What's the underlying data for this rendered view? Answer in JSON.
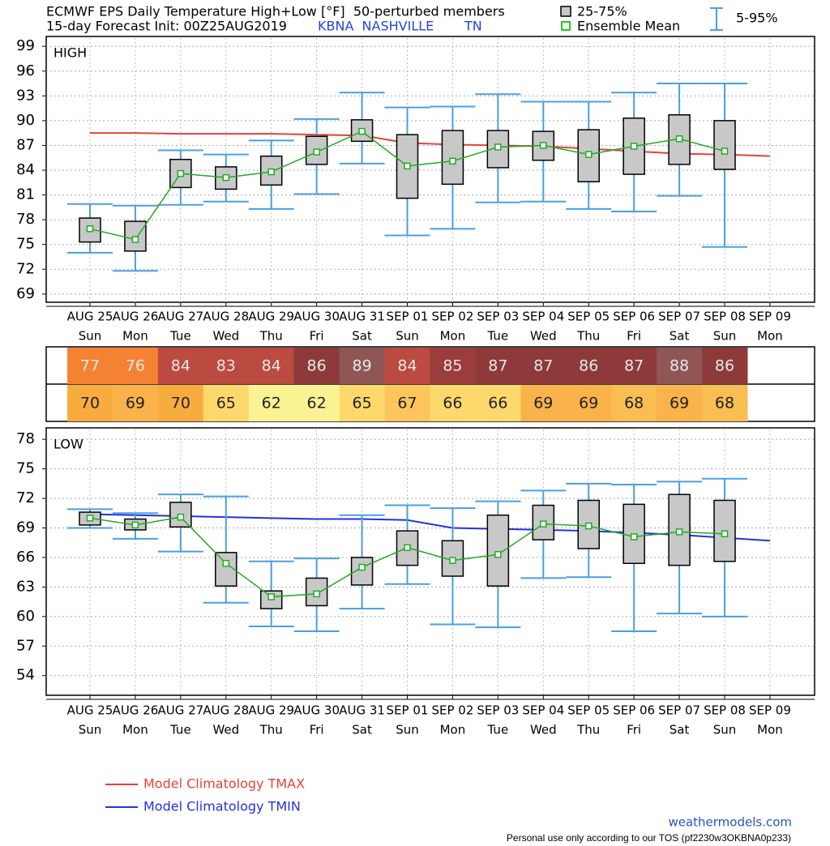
{
  "header": {
    "title": "ECMWF EPS Daily Temperature High+Low [°F]  50-perturbed members",
    "subtitle": "15-day Forecast Init: 00Z25AUG2019",
    "station": "KBNA  NASHVILLE",
    "state": "TN",
    "legend_box": "25-75%",
    "legend_mean": "Ensemble Mean",
    "legend_whisker": "5-95%"
  },
  "chart_data": [
    {
      "type": "box",
      "label": "HIGH",
      "categories": [
        "AUG 25",
        "AUG 26",
        "AUG 27",
        "AUG 28",
        "AUG 29",
        "AUG 30",
        "AUG 31",
        "SEP 01",
        "SEP 02",
        "SEP 03",
        "SEP 04",
        "SEP 05",
        "SEP 06",
        "SEP 07",
        "SEP 08",
        "SEP 09"
      ],
      "weekdays": [
        "Sun",
        "Mon",
        "Tue",
        "Wed",
        "Thu",
        "Fri",
        "Sat",
        "Sun",
        "Mon",
        "Tue",
        "Wed",
        "Thu",
        "Fri",
        "Sat",
        "Sun",
        "Mon"
      ],
      "ylim": [
        68,
        100
      ],
      "yticks": [
        69,
        72,
        75,
        78,
        81,
        84,
        87,
        90,
        93,
        96,
        99
      ],
      "grid": true,
      "box_color": "#c8c8c8",
      "whisker_color": "#4a9fe0",
      "mean_color": "#22aa22",
      "p5": [
        74.0,
        71.8,
        79.8,
        80.2,
        79.3,
        81.1,
        84.8,
        76.1,
        76.9,
        80.1,
        80.2,
        79.3,
        79.0,
        80.9,
        74.7,
        null
      ],
      "p25": [
        75.3,
        74.2,
        81.9,
        81.7,
        82.2,
        84.7,
        87.5,
        80.6,
        82.3,
        84.3,
        85.2,
        82.6,
        83.5,
        84.7,
        84.1,
        null
      ],
      "mean": [
        76.9,
        75.6,
        83.6,
        83.1,
        83.8,
        86.2,
        88.7,
        84.5,
        85.1,
        86.8,
        87.0,
        85.9,
        86.9,
        87.8,
        86.3,
        null
      ],
      "p75": [
        78.2,
        77.8,
        85.3,
        84.4,
        85.7,
        88.1,
        90.1,
        88.3,
        88.8,
        88.8,
        88.7,
        88.9,
        90.3,
        90.7,
        90.0,
        null
      ],
      "p95": [
        79.9,
        79.7,
        86.4,
        85.9,
        87.6,
        90.2,
        93.4,
        91.6,
        91.7,
        93.2,
        92.3,
        92.3,
        93.4,
        94.5,
        94.5,
        null
      ],
      "climatology": {
        "name": "Model Climatology TMAX",
        "color": "#e8403a",
        "values": [
          88.5,
          88.5,
          88.4,
          88.4,
          88.4,
          88.3,
          88.2,
          87.3,
          87.1,
          87.0,
          86.9,
          86.6,
          86.3,
          86.0,
          85.9,
          85.7
        ]
      }
    },
    {
      "type": "box",
      "label": "LOW",
      "categories": [
        "AUG 25",
        "AUG 26",
        "AUG 27",
        "AUG 28",
        "AUG 29",
        "AUG 30",
        "AUG 31",
        "SEP 01",
        "SEP 02",
        "SEP 03",
        "SEP 04",
        "SEP 05",
        "SEP 06",
        "SEP 07",
        "SEP 08",
        "SEP 09"
      ],
      "weekdays": [
        "Sun",
        "Mon",
        "Tue",
        "Wed",
        "Thu",
        "Fri",
        "Sat",
        "Sun",
        "Mon",
        "Tue",
        "Wed",
        "Thu",
        "Fri",
        "Sat",
        "Sun",
        "Mon"
      ],
      "ylim": [
        52,
        79
      ],
      "yticks": [
        54,
        57,
        60,
        63,
        66,
        69,
        72,
        75,
        78
      ],
      "grid": true,
      "box_color": "#c8c8c8",
      "whisker_color": "#4a9fe0",
      "mean_color": "#22aa22",
      "p5": [
        69.0,
        67.9,
        66.6,
        61.4,
        59.0,
        58.5,
        60.8,
        63.3,
        59.2,
        58.9,
        63.9,
        64.0,
        58.5,
        60.3,
        60.0,
        null
      ],
      "p25": [
        69.3,
        68.8,
        69.1,
        63.1,
        60.8,
        61.1,
        63.2,
        65.2,
        64.1,
        63.1,
        67.8,
        66.9,
        65.4,
        65.2,
        65.6,
        null
      ],
      "mean": [
        70.0,
        69.3,
        70.1,
        65.4,
        62.0,
        62.3,
        65.0,
        67.0,
        65.7,
        66.3,
        69.4,
        69.2,
        68.1,
        68.6,
        68.4,
        null
      ],
      "p75": [
        70.6,
        69.9,
        71.6,
        66.5,
        62.6,
        63.9,
        66.0,
        68.7,
        67.7,
        70.3,
        71.3,
        71.8,
        71.4,
        72.4,
        71.8,
        null
      ],
      "p95": [
        70.9,
        70.5,
        72.4,
        72.2,
        65.6,
        65.9,
        70.3,
        71.3,
        71.0,
        71.7,
        72.8,
        73.5,
        73.4,
        73.7,
        74.0,
        null
      ],
      "climatology": {
        "name": "Model Climatology TMIN",
        "color": "#2233dd",
        "values": [
          70.4,
          70.3,
          70.2,
          70.1,
          70.0,
          69.9,
          69.9,
          69.8,
          69.0,
          68.9,
          68.8,
          68.7,
          68.5,
          68.3,
          68.0,
          67.7
        ]
      }
    }
  ],
  "table": {
    "rows": [
      {
        "values": [
          77,
          76,
          84,
          83,
          84,
          86,
          89,
          84,
          85,
          87,
          87,
          86,
          87,
          88,
          86
        ],
        "colors": [
          "#f58133",
          "#f58133",
          "#bb4a40",
          "#bb4a40",
          "#bb4a40",
          "#8e3a3a",
          "#8f5656",
          "#bb4a40",
          "#9c3d3d",
          "#8e3a3a",
          "#8e3a3a",
          "#8e3a3a",
          "#8e3a3a",
          "#8f5656",
          "#8e3a3a"
        ]
      },
      {
        "values": [
          70,
          69,
          70,
          65,
          62,
          62,
          65,
          67,
          66,
          66,
          69,
          69,
          68,
          69,
          68
        ],
        "colors": [
          "#f8ac3e",
          "#f9b34a",
          "#f8ac3e",
          "#fdd86c",
          "#fbf393",
          "#fbf393",
          "#fdd86c",
          "#fcc65c",
          "#fdd86c",
          "#fdd86c",
          "#f9b34a",
          "#f9b34a",
          "#fabd52",
          "#f9b34a",
          "#fabd52"
        ]
      }
    ]
  },
  "footer": {
    "site": "weathermodels.com",
    "note": "Personal use only according to our TOS (pf2230w3OKBNA0p233)"
  }
}
